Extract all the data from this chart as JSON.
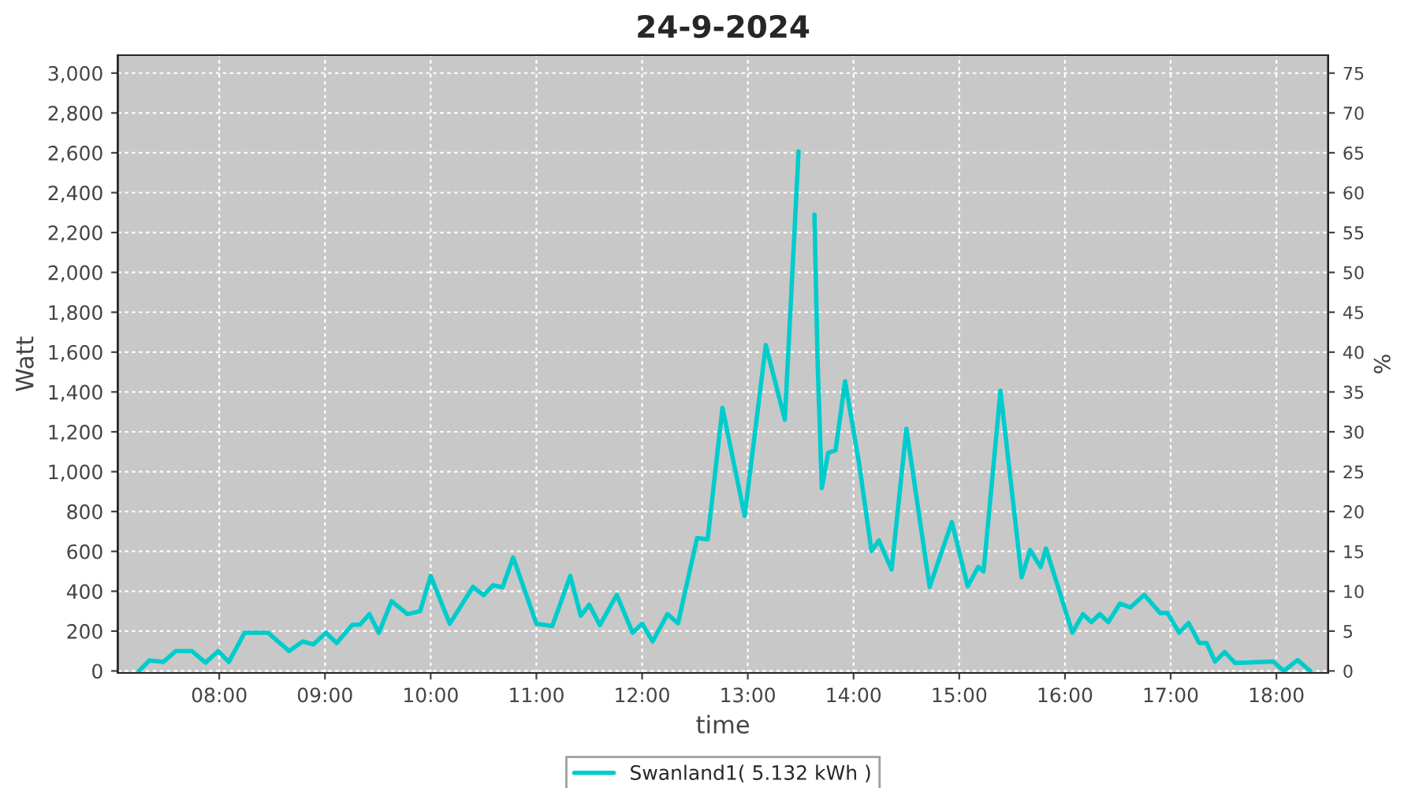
{
  "chart_data": {
    "type": "line",
    "title": "24-9-2024",
    "xlabel": "time",
    "ylabel": "Watt",
    "y2label": "%",
    "xlim": [
      7.04,
      18.49
    ],
    "xticks": [
      {
        "value": 8,
        "label": "08:00"
      },
      {
        "value": 9,
        "label": "09:00"
      },
      {
        "value": 10,
        "label": "10:00"
      },
      {
        "value": 11,
        "label": "11:00"
      },
      {
        "value": 12,
        "label": "12:00"
      },
      {
        "value": 13,
        "label": "13:00"
      },
      {
        "value": 14,
        "label": "14:00"
      },
      {
        "value": 15,
        "label": "15:00"
      },
      {
        "value": 16,
        "label": "16:00"
      },
      {
        "value": 17,
        "label": "17:00"
      },
      {
        "value": 18,
        "label": "18:00"
      }
    ],
    "ylim": [
      -10,
      3090
    ],
    "yticks": [
      0,
      200,
      400,
      600,
      800,
      {
        "value": 1000,
        "label": "1,000"
      },
      {
        "value": 1200,
        "label": "1,200"
      },
      {
        "value": 1400,
        "label": "1,400"
      },
      {
        "value": 1600,
        "label": "1,600"
      },
      {
        "value": 1800,
        "label": "1,800"
      },
      {
        "value": 2000,
        "label": "2,000"
      },
      {
        "value": 2200,
        "label": "2,200"
      },
      {
        "value": 2400,
        "label": "2,400"
      },
      {
        "value": 2600,
        "label": "2,600"
      },
      {
        "value": 2800,
        "label": "2,800"
      },
      {
        "value": 3000,
        "label": "3,000"
      }
    ],
    "y2lim": [
      -0.25,
      77.25
    ],
    "y2ticks": [
      0,
      5,
      10,
      15,
      20,
      25,
      30,
      35,
      40,
      45,
      50,
      55,
      60,
      65,
      70,
      75
    ],
    "grid": true,
    "legend": "bottom",
    "marker": "none",
    "line_style": "solid",
    "series": [
      {
        "name": "Swanland1( 5.132 kWh )",
        "color": "#00cccc",
        "x": [
          7.24,
          7.34,
          7.47,
          7.59,
          7.74,
          7.87,
          7.99,
          8.09,
          8.24,
          8.46,
          8.66,
          8.79,
          8.89,
          9.01,
          9.11,
          9.26,
          9.33,
          9.42,
          9.51,
          9.63,
          9.78,
          9.9,
          10.0,
          10.18,
          10.4,
          10.5,
          10.59,
          10.68,
          10.78,
          11.0,
          11.15,
          11.32,
          11.42,
          11.5,
          11.6,
          11.76,
          11.91,
          12.0,
          12.1,
          12.24,
          12.34,
          12.52,
          12.62,
          12.76,
          12.97,
          13.17,
          13.35,
          13.48,
          13.51,
          13.59,
          13.63,
          13.66,
          13.7,
          13.76,
          13.83,
          13.92,
          14.05,
          14.17,
          14.24,
          14.36,
          14.5,
          14.72,
          14.93,
          15.08,
          15.18,
          15.23,
          15.39,
          15.59,
          15.67,
          15.77,
          15.82,
          16.07,
          16.17,
          16.25,
          16.33,
          16.41,
          16.52,
          16.62,
          16.75,
          16.9,
          16.97,
          17.08,
          17.17,
          17.27,
          17.34,
          17.42,
          17.51,
          17.61,
          17.97,
          18.07,
          18.2,
          18.32
        ],
        "values": [
          0,
          53,
          45,
          100,
          100,
          42,
          100,
          45,
          192,
          192,
          100,
          148,
          133,
          192,
          140,
          232,
          232,
          285,
          192,
          350,
          285,
          300,
          477,
          237,
          422,
          380,
          430,
          420,
          570,
          237,
          225,
          477,
          277,
          332,
          230,
          382,
          192,
          237,
          148,
          285,
          240,
          667,
          660,
          1320,
          778,
          1636,
          1261,
          2607,
          null,
          null,
          2290,
          1552,
          918,
          1095,
          1108,
          1454,
          1050,
          602,
          655,
          509,
          1216,
          422,
          747,
          425,
          522,
          500,
          1406,
          470,
          607,
          522,
          615,
          192,
          285,
          245,
          285,
          245,
          338,
          319,
          382,
          291,
          291,
          192,
          240,
          140,
          140,
          47,
          95,
          40,
          47,
          0,
          55,
          0
        ]
      }
    ]
  }
}
